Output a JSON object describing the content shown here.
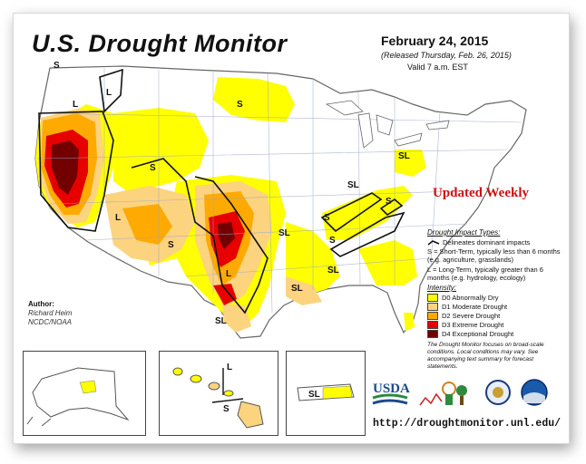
{
  "header": {
    "title": "U.S. Drought Monitor",
    "date": "February 24, 2015",
    "released": "(Released Thursday, Feb. 26, 2015)",
    "valid": "Valid 7 a.m. EST"
  },
  "banner": "Updated Weekly",
  "legend": {
    "impact_header": "Drought Impact Types:",
    "delineates": "Delineates dominant impacts",
    "short_term": "S = Short-Term, typically less than 6 months (e.g. agriculture, grasslands)",
    "long_term": "L = Long-Term, typically greater than 6 months (e.g. hydrology, ecology)",
    "intensity_header": "Intensity:",
    "categories": [
      {
        "label": "D0 Abnormally Dry",
        "color": "#ffff00"
      },
      {
        "label": "D1 Moderate Drought",
        "color": "#fcd37f"
      },
      {
        "label": "D2 Severe Drought",
        "color": "#ffaa00"
      },
      {
        "label": "D3 Extreme Drought",
        "color": "#e60000"
      },
      {
        "label": "D4 Exceptional Drought",
        "color": "#730000"
      }
    ],
    "note": "The Drought Monitor focuses on broad-scale conditions. Local conditions may vary. See accompanying text summary for forecast statements."
  },
  "author": {
    "label": "Author:",
    "name": "Richard Heim",
    "org": "NCDC/NOAA"
  },
  "map_labels": {
    "s": "S",
    "l": "L",
    "sl": "SL"
  },
  "logos": {
    "usda": "USDA"
  },
  "url": "http://droughtmonitor.unl.edu/"
}
